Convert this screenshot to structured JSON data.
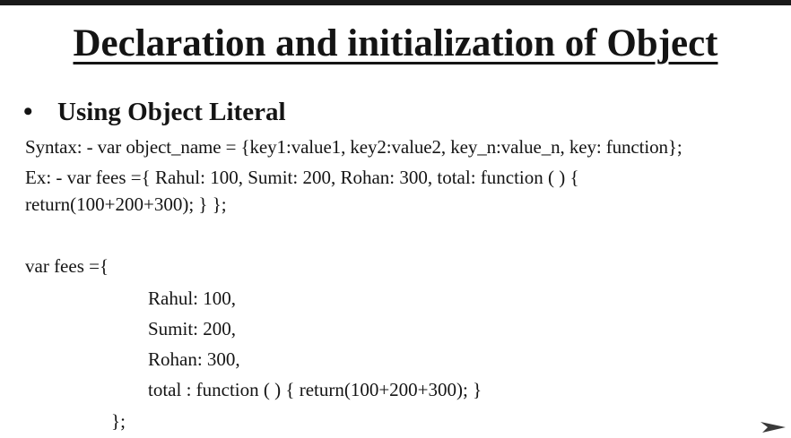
{
  "slide": {
    "title": "Declaration and initialization of Object",
    "bullet": "Using Object Literal",
    "syntax_line": "Syntax: - var object_name = {key1:value1, key2:value2, key_n:value_n, key: function};",
    "example_line_1": "Ex: - var fees ={ Rahul: 100, Sumit: 200, Rohan: 300, total: function ( ) {",
    "example_line_2": "return(100+200+300); }   };",
    "code_block": {
      "open": "var fees ={",
      "lines": [
        "Rahul: 100,",
        "Sumit: 200,",
        "Rohan: 300,",
        "total : function ( ) { return(100+200+300); }"
      ],
      "close": "};"
    }
  },
  "icons": {
    "bullet": "bullet-dot-icon",
    "corner": "next-arrow-icon"
  }
}
